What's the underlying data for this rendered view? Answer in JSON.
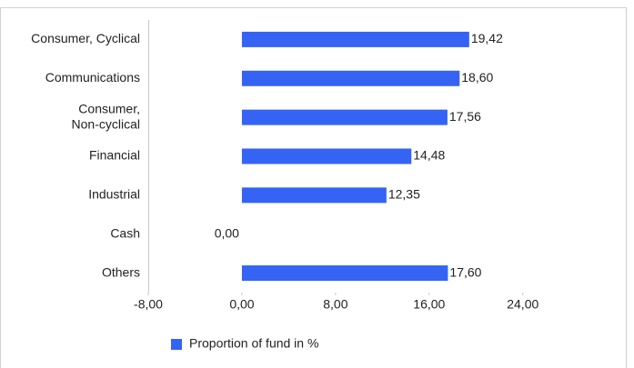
{
  "chart_data": {
    "type": "hbar",
    "categories": [
      "Consumer, Cyclical",
      "Communications",
      "Consumer,\nNon-cyclical",
      "Financial",
      "Industrial",
      "Cash",
      "Others"
    ],
    "series": [
      {
        "name": "Proportion of fund in %",
        "color": "#3563f4",
        "values": [
          19.42,
          18.6,
          17.56,
          14.48,
          12.35,
          0.0,
          17.6
        ],
        "value_labels": [
          "19,42",
          "18,60",
          "17,56",
          "14,48",
          "12,35",
          "0,00",
          "17,60"
        ]
      }
    ],
    "xlim": [
      -8,
      32.8
    ],
    "xticks": [
      {
        "value": -8,
        "label": "-8,00"
      },
      {
        "value": 0,
        "label": "0,00"
      },
      {
        "value": 8,
        "label": "8,00"
      },
      {
        "value": 16,
        "label": "16,00"
      },
      {
        "value": 24,
        "label": "24,00"
      }
    ],
    "legend": "bottom"
  }
}
